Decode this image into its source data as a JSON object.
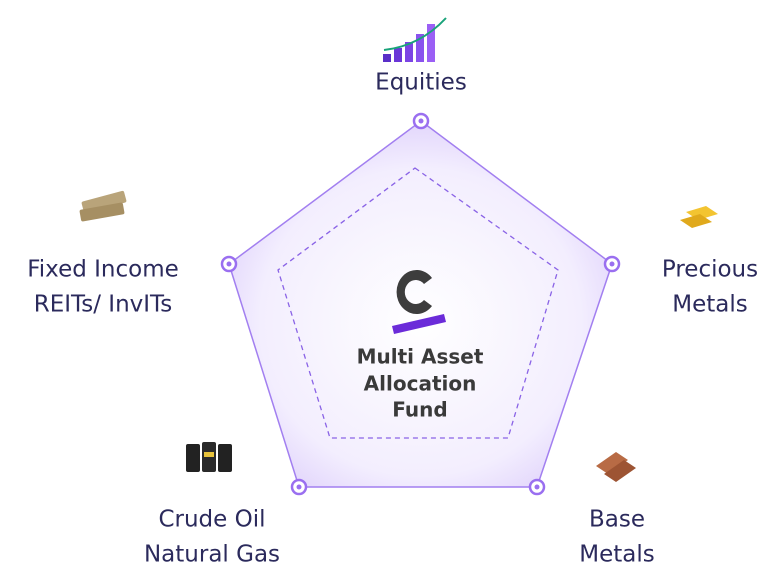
{
  "center": {
    "lines": [
      "Multi Asset",
      "Allocation",
      "Fund"
    ]
  },
  "nodes": [
    {
      "lines": [
        "Equities"
      ]
    },
    {
      "lines": [
        "Precious",
        "Metals"
      ]
    },
    {
      "lines": [
        "Base",
        "Metals"
      ]
    },
    {
      "lines": [
        "Crude Oil",
        "Natural Gas"
      ]
    },
    {
      "lines": [
        "Fixed Income",
        "REITs/ InvITs"
      ]
    }
  ]
}
